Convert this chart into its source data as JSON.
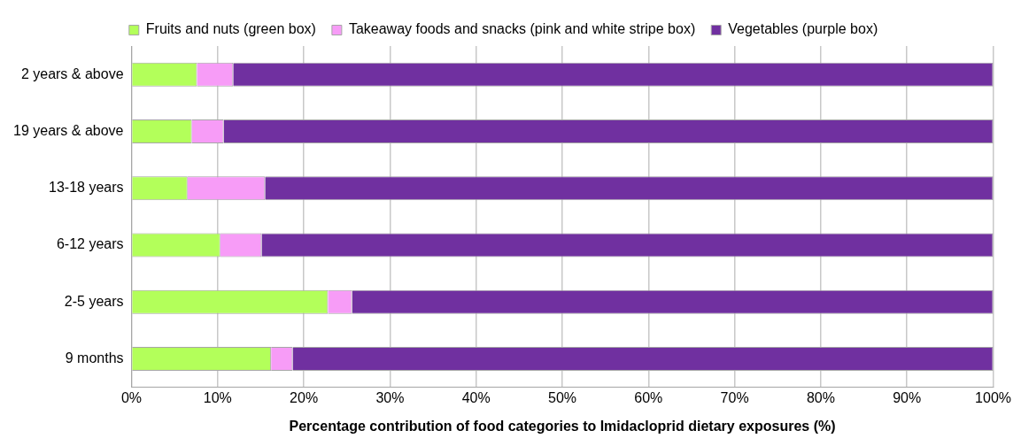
{
  "chart_data": {
    "type": "bar",
    "orientation": "horizontal",
    "stacked": true,
    "categories": [
      "2 years & above",
      "19 years & above",
      "13-18 years",
      "6-12 years",
      "2-5 years",
      "9 months"
    ],
    "series": [
      {
        "name": "Fruits and nuts (green box)",
        "color": "#b3ff5a",
        "values": [
          7.6,
          7.0,
          6.5,
          10.3,
          22.8,
          16.2
        ]
      },
      {
        "name": "Takeaway foods and snacks (pink and white stripe box)",
        "color": "#f79cf7",
        "values": [
          4.2,
          3.7,
          9.0,
          4.8,
          2.8,
          2.5
        ]
      },
      {
        "name": "Vegetables (purple box)",
        "color": "#7030a0",
        "values": [
          88.2,
          89.3,
          84.5,
          84.9,
          74.4,
          81.3
        ]
      }
    ],
    "xlim": [
      0,
      100
    ],
    "xticks": [
      {
        "value": 0,
        "label": "0%"
      },
      {
        "value": 10,
        "label": "10%"
      },
      {
        "value": 20,
        "label": "20%"
      },
      {
        "value": 30,
        "label": "30%"
      },
      {
        "value": 40,
        "label": "40%"
      },
      {
        "value": 50,
        "label": "50%"
      },
      {
        "value": 60,
        "label": "60%"
      },
      {
        "value": 70,
        "label": "70%"
      },
      {
        "value": 80,
        "label": "80%"
      },
      {
        "value": 90,
        "label": "90%"
      },
      {
        "value": 100,
        "label": "100%"
      }
    ],
    "xlabel": "Percentage contribution of food categories to Imidacloprid dietary exposures (%)",
    "grid": "x",
    "legend": "top"
  }
}
